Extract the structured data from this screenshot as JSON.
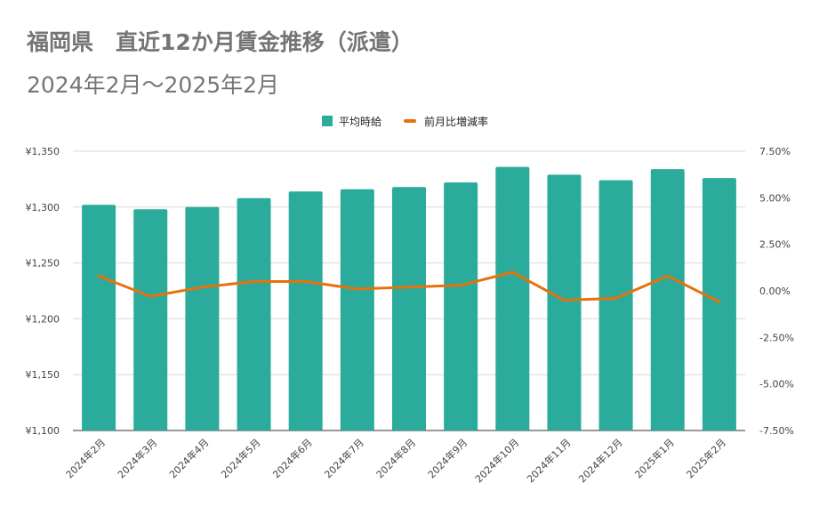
{
  "title": "福岡県　直近12か月賃金推移（派遣）",
  "subtitle": "2024年2月～2025年2月",
  "colors": {
    "bar": "#2bab9b",
    "line": "#e8710a",
    "grid": "#d9d9d9",
    "axis": "#333333"
  },
  "chart_data": {
    "type": "bar",
    "title": "福岡県　直近12か月賃金推移（派遣）",
    "subtitle": "2024年2月～2025年2月",
    "categories": [
      "2024年2月",
      "2024年3月",
      "2024年4月",
      "2024年5月",
      "2024年6月",
      "2024年7月",
      "2024年8月",
      "2024年9月",
      "2024年10月",
      "2024年11月",
      "2024年12月",
      "2025年1月",
      "2025年2月"
    ],
    "legend": [
      "平均時給",
      "前月比増減率"
    ],
    "legend_position": "top-center",
    "series": [
      {
        "name": "平均時給",
        "type": "bar",
        "axis": "left",
        "values": [
          1302,
          1298,
          1300,
          1308,
          1314,
          1316,
          1318,
          1322,
          1336,
          1329,
          1324,
          1334,
          1326
        ]
      },
      {
        "name": "前月比増減率",
        "type": "line",
        "axis": "right",
        "values": [
          0.8,
          -0.3,
          0.2,
          0.5,
          0.5,
          0.1,
          0.2,
          0.3,
          1.0,
          -0.5,
          -0.4,
          0.8,
          -0.6
        ]
      }
    ],
    "y_left": {
      "min": 1100,
      "max": 1350,
      "ticks": [
        1100,
        1150,
        1200,
        1250,
        1300,
        1350
      ],
      "labels": [
        "¥1,100",
        "¥1,150",
        "¥1,200",
        "¥1,250",
        "¥1,300",
        "¥1,350"
      ]
    },
    "y_right": {
      "min": -7.5,
      "max": 7.5,
      "ticks": [
        -7.5,
        -5,
        -2.5,
        0,
        2.5,
        5,
        7.5
      ],
      "labels": [
        "-7.50%",
        "-5.00%",
        "-2.50%",
        "0.00%",
        "2.50%",
        "5.00%",
        "7.50%"
      ]
    },
    "grid": true
  }
}
